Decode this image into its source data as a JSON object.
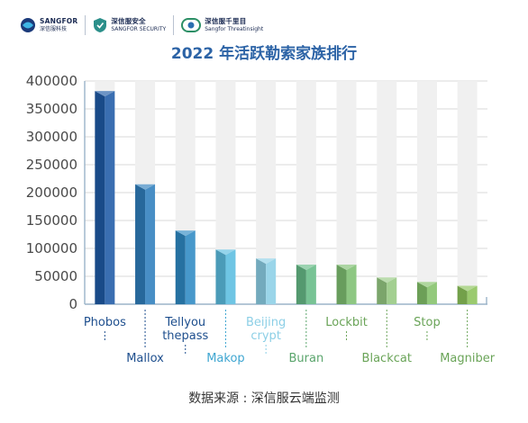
{
  "logos": [
    {
      "line1": "SANGFOR",
      "line2": "深信服科技"
    },
    {
      "line1": "深信服安全",
      "line2": "SANGFOR SECURITY"
    },
    {
      "line1": "深信服千里目",
      "line2": "Sangfor Threatinsight"
    }
  ],
  "source_text": "数据来源 : 深信服云端监测",
  "chart_data": {
    "type": "bar",
    "title": "2022 年活跃勒索家族排行",
    "xlabel": "",
    "ylabel": "",
    "ylim": [
      0,
      400000
    ],
    "yticks": [
      "0",
      "50000",
      "100000",
      "150000",
      "200000",
      "250000",
      "300000",
      "350000",
      "400000"
    ],
    "grid": true,
    "legend": "none",
    "categories": [
      "Phobos",
      "Mallox",
      "Tellyou thepass",
      "Makop",
      "Beijing crypt",
      "Buran",
      "Lockbit",
      "Blackcat",
      "Stop",
      "Magniber"
    ],
    "label_lines": [
      [
        "Phobos"
      ],
      [
        "Mallox"
      ],
      [
        "Tellyou",
        "thepass"
      ],
      [
        "Makop"
      ],
      [
        "Beijing",
        "crypt"
      ],
      [
        "Buran"
      ],
      [
        "Lockbit"
      ],
      [
        "Blackcat"
      ],
      [
        "Stop"
      ],
      [
        "Magniber"
      ]
    ],
    "values": [
      382000,
      215000,
      132000,
      98000,
      82000,
      71000,
      71000,
      48000,
      40000,
      33000
    ],
    "colors": [
      "#1f5aa6",
      "#2f7fbd",
      "#2e8ac4",
      "#5bbde0",
      "#8ccfe6",
      "#66bb87",
      "#7fbf72",
      "#96c982",
      "#84c26a",
      "#8cc35a"
    ],
    "label_colors": [
      "#1e4f8e",
      "#1e4f8e",
      "#1e4f8e",
      "#3fa6d1",
      "#8ccfe6",
      "#5aa56c",
      "#6aa458",
      "#6aa458",
      "#6aa458",
      "#6aa458"
    ]
  }
}
